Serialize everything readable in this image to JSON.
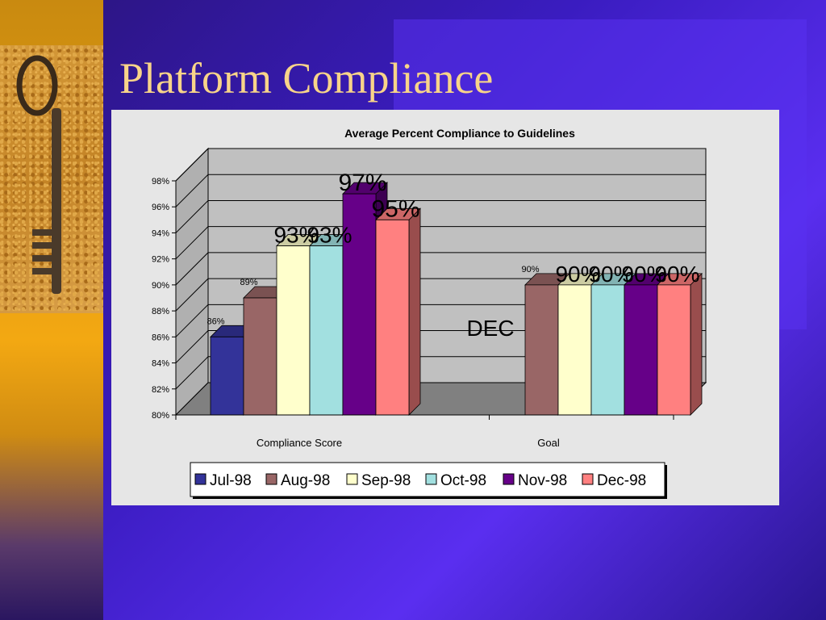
{
  "slide": {
    "title": "Platform Compliance"
  },
  "colors": {
    "Jul-98": "#333399",
    "Aug-98": "#996666",
    "Sep-98": "#ffffcc",
    "Oct-98": "#a2e0e0",
    "Nov-98": "#660088",
    "Dec-98": "#ff8080"
  },
  "chart_data": {
    "type": "bar",
    "title": "Average Percent Compliance to Guidelines",
    "categories": [
      "Compliance Score",
      "Goal"
    ],
    "ylim": [
      80,
      98
    ],
    "yticks": [
      "80%",
      "82%",
      "84%",
      "86%",
      "88%",
      "90%",
      "92%",
      "94%",
      "96%",
      "98%"
    ],
    "grid": true,
    "legend_position": "bottom",
    "series": [
      {
        "name": "Jul-98",
        "values": [
          86,
          null
        ],
        "labels": [
          "86%",
          ""
        ]
      },
      {
        "name": "Aug-98",
        "values": [
          89,
          90
        ],
        "labels": [
          "89%",
          "90%"
        ]
      },
      {
        "name": "Sep-98",
        "values": [
          93,
          90
        ],
        "labels": [
          "93%",
          "90%"
        ]
      },
      {
        "name": "Oct-98",
        "values": [
          93,
          90
        ],
        "labels": [
          "93%",
          "90%"
        ]
      },
      {
        "name": "Nov-98",
        "values": [
          97,
          90
        ],
        "labels": [
          "97%",
          "90%"
        ]
      },
      {
        "name": "Dec-98",
        "values": [
          95,
          90
        ],
        "labels": [
          "95%",
          "90%"
        ]
      }
    ],
    "annotations": [
      "DEC"
    ]
  }
}
